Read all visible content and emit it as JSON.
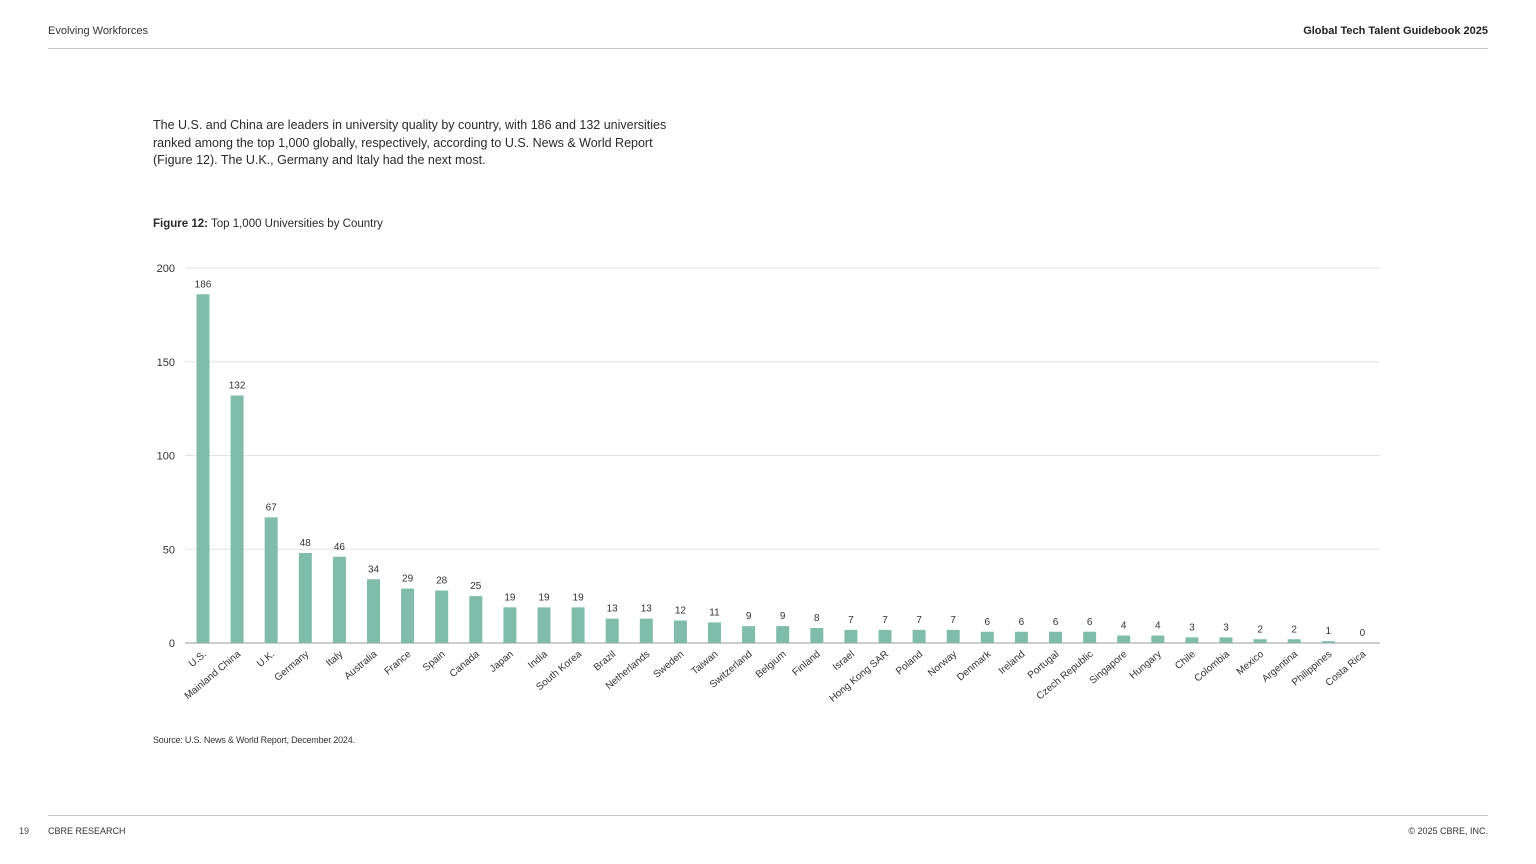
{
  "header": {
    "section": "Evolving Workforces",
    "publication": "Global Tech Talent Guidebook 2025"
  },
  "intro_text": "The U.S. and China are leaders in university quality by country, with 186 and 132 universities ranked among the top 1,000 globally, respectively, according to U.S. News & World Report (Figure 12). The U.K., Germany and Italy had the next most.",
  "figure": {
    "label": "Figure 12:",
    "title": "Top 1,000 Universities by Country"
  },
  "chart_data": {
    "type": "bar",
    "title": "Top 1,000 Universities by Country",
    "xlabel": "",
    "ylabel": "",
    "ylim": [
      0,
      200
    ],
    "yticks": [
      0,
      50,
      100,
      150,
      200
    ],
    "grid": true,
    "bar_color": "#80bcaa",
    "categories": [
      "U.S.",
      "Mainland China",
      "U.K.",
      "Germany",
      "Italy",
      "Australia",
      "France",
      "Spain",
      "Canada",
      "Japan",
      "India",
      "South Korea",
      "Brazil",
      "Netherlands",
      "Sweden",
      "Taiwan",
      "Switzerland",
      "Belgium",
      "Finland",
      "Israel",
      "Hong Kong SAR",
      "Poland",
      "Norway",
      "Denmark",
      "Ireland",
      "Portugal",
      "Czech Republic",
      "Singapore",
      "Hungary",
      "Chile",
      "Colombia",
      "Mexico",
      "Argentina",
      "Philippines",
      "Costa Rica"
    ],
    "values": [
      186,
      132,
      67,
      48,
      46,
      34,
      29,
      28,
      25,
      19,
      19,
      19,
      13,
      13,
      12,
      11,
      9,
      9,
      8,
      7,
      7,
      7,
      7,
      6,
      6,
      6,
      6,
      4,
      4,
      3,
      3,
      2,
      2,
      1,
      0
    ]
  },
  "source": "Source: U.S. News & World Report, December 2024.",
  "footer": {
    "page_number": "19",
    "brand": "CBRE RESEARCH",
    "copyright": "© 2025 CBRE, INC."
  }
}
